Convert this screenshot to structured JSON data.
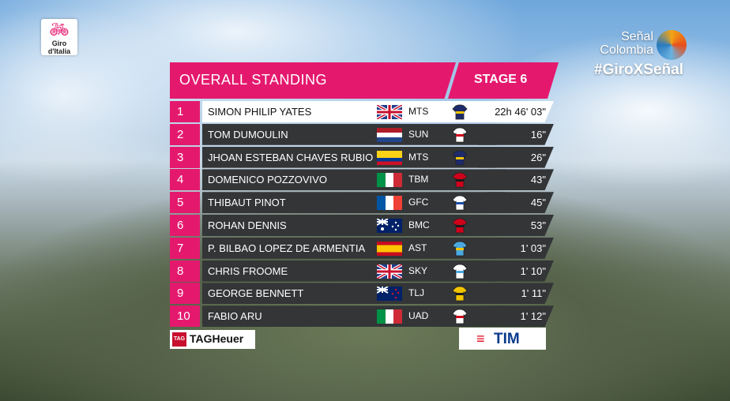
{
  "broadcast": {
    "race_logo_text": "Giro d'Italia",
    "channel_line1": "Señal",
    "channel_line2": "Colombia",
    "hashtag": "#GiroXSeñal"
  },
  "standings": {
    "title": "OVERALL STANDING",
    "stage": "STAGE 6",
    "rows": [
      {
        "pos": "1",
        "name": "SIMON PHILIP YATES",
        "team": "MTS",
        "time": "22h 46' 03\"",
        "flag": "gb",
        "jersey": [
          "#1e2b6b",
          "#f2c400"
        ]
      },
      {
        "pos": "2",
        "name": "TOM DUMOULIN",
        "team": "SUN",
        "time": "16\"",
        "flag": "nl",
        "jersey": [
          "#ffffff",
          "#d0021b"
        ]
      },
      {
        "pos": "3",
        "name": "JHOAN ESTEBAN CHAVES RUBIO",
        "team": "MTS",
        "time": "26\"",
        "flag": "co",
        "jersey": [
          "#1e2b6b",
          "#f2c400"
        ]
      },
      {
        "pos": "4",
        "name": "DOMENICO POZZOVIVO",
        "team": "TBM",
        "time": "43\"",
        "flag": "it",
        "jersey": [
          "#d0021b",
          "#1a1a1a"
        ]
      },
      {
        "pos": "5",
        "name": "THIBAUT PINOT",
        "team": "GFC",
        "time": "45\"",
        "flag": "fr",
        "jersey": [
          "#ffffff",
          "#1e4fa8"
        ]
      },
      {
        "pos": "6",
        "name": "ROHAN DENNIS",
        "team": "BMC",
        "time": "53\"",
        "flag": "au",
        "jersey": [
          "#d0021b",
          "#1a1a1a"
        ]
      },
      {
        "pos": "7",
        "name": "P. BILBAO LOPEZ DE ARMENTIA",
        "team": "AST",
        "time": "1' 03\"",
        "flag": "es",
        "jersey": [
          "#4aa8e0",
          "#f2c400"
        ]
      },
      {
        "pos": "8",
        "name": "CHRIS FROOME",
        "team": "SKY",
        "time": "1' 10\"",
        "flag": "gb",
        "jersey": [
          "#ffffff",
          "#4aa8e0"
        ]
      },
      {
        "pos": "9",
        "name": "GEORGE BENNETT",
        "team": "TLJ",
        "time": "1' 11\"",
        "flag": "nz",
        "jersey": [
          "#f2c400",
          "#1a1a1a"
        ]
      },
      {
        "pos": "10",
        "name": "FABIO ARU",
        "team": "UAD",
        "time": "1' 12\"",
        "flag": "it",
        "jersey": [
          "#ffffff",
          "#d0021b"
        ]
      }
    ]
  },
  "sponsors": {
    "left_mark": "TAG",
    "left": "TAGHeuer",
    "right": "TIM"
  },
  "colors": {
    "accent": "#e4196e",
    "row_bg": "#333537"
  }
}
